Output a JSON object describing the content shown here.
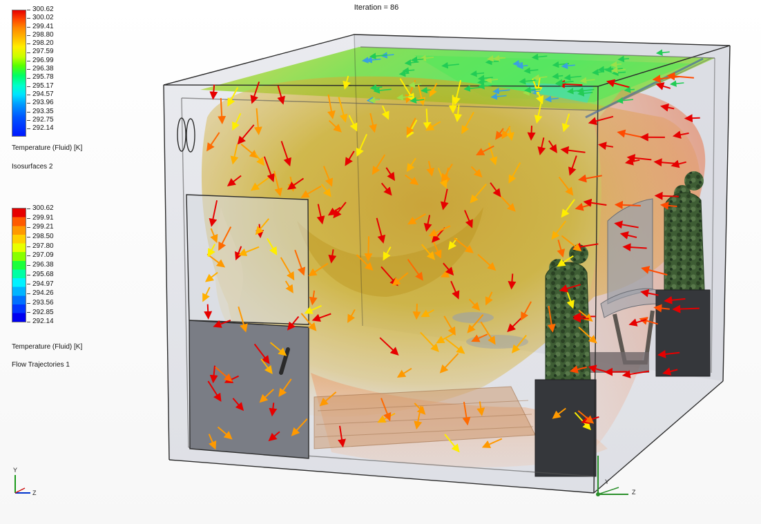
{
  "iteration": {
    "text": "Iteration = 86"
  },
  "legend_temperature": {
    "ticks": [
      "300.62",
      "300.02",
      "299.41",
      "298.80",
      "298.20",
      "297.59",
      "296.99",
      "296.38",
      "295.78",
      "295.17",
      "294.57",
      "293.96",
      "293.35",
      "292.75",
      "292.14"
    ],
    "title": "Temperature (Fluid) [K]",
    "caption": "Isosurfaces 2",
    "max": 300.62,
    "min": 292.14,
    "scale": "continuous"
  },
  "legend_trajectories": {
    "ticks": [
      "300.62",
      "299.91",
      "299.21",
      "298.50",
      "297.80",
      "297.09",
      "296.38",
      "295.68",
      "294.97",
      "294.26",
      "293.56",
      "292.85",
      "292.14"
    ],
    "title": "Temperature (Fluid) [K]",
    "caption": "Flow Trajectories 1",
    "max": 300.62,
    "min": 292.14,
    "scale": "banded"
  },
  "triad_small": {
    "y_label": "Y",
    "z_label": "Z"
  },
  "triad_scene": {
    "y_label": "Y",
    "z_label": "Z"
  },
  "colors": {
    "hot": "#e60000",
    "warm": "#ff9900",
    "mid": "#ffee00",
    "cool": "#00ff66",
    "cold": "#0018ff",
    "enclosure_edge": "#2b2b2b",
    "isosurface": "#c8a012",
    "door_panel": "#7a7d85",
    "figure": "#3d5e36",
    "pedestal": "#35373b"
  },
  "scene": {
    "description_icons": [
      "enclosure-icon",
      "door-icon",
      "statue-icon",
      "pedestal-icon",
      "flow-arrow-icon"
    ]
  }
}
